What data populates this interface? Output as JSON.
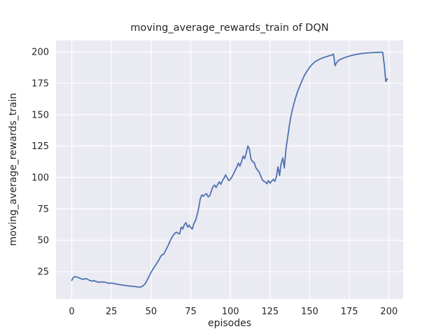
{
  "chart_data": {
    "type": "line",
    "title": "moving_average_rewards_train of DQN",
    "xlabel": "episodes",
    "ylabel": "moving_average_rewards_train",
    "x_ticks": [
      0,
      25,
      50,
      75,
      100,
      125,
      150,
      175,
      200
    ],
    "y_ticks": [
      25,
      50,
      75,
      100,
      125,
      150,
      175,
      200
    ],
    "xlim": [
      -9.95,
      208.95
    ],
    "ylim": [
      3.3,
      209.2
    ],
    "grid": true,
    "legend_position": "none",
    "style": {
      "figure_bg": "#ffffff",
      "axes_bg": "#eaeaf2",
      "grid_color": "#ffffff",
      "line_color": "#4c72b0",
      "text_color": "#262626"
    },
    "series": [
      {
        "name": "moving_average_rewards_train",
        "x_is_index": true,
        "values": [
          18.0,
          20.3,
          21.2,
          20.7,
          20.3,
          19.8,
          19.3,
          18.8,
          19.2,
          19.5,
          18.9,
          18.2,
          17.7,
          17.5,
          17.9,
          17.3,
          16.9,
          16.5,
          16.9,
          16.6,
          16.9,
          16.5,
          16.2,
          15.9,
          15.6,
          16.0,
          15.7,
          15.4,
          15.1,
          14.9,
          14.7,
          14.5,
          14.3,
          14.1,
          13.9,
          13.8,
          13.6,
          13.5,
          13.3,
          13.2,
          13.1,
          12.9,
          12.8,
          12.7,
          13.0,
          13.8,
          15.0,
          17.0,
          19.5,
          22.0,
          24.5,
          26.5,
          28.5,
          30.5,
          32.5,
          34.5,
          37.0,
          38.5,
          38.8,
          41.5,
          44.0,
          46.5,
          49.5,
          52.0,
          54.0,
          55.5,
          56.5,
          55.5,
          55.0,
          60.5,
          59.0,
          62.5,
          64.0,
          60.5,
          62.0,
          60.0,
          59.0,
          63.5,
          65.5,
          70.0,
          75.5,
          83.0,
          86.0,
          85.0,
          86.5,
          87.0,
          84.5,
          85.5,
          89.0,
          92.5,
          94.0,
          92.0,
          94.5,
          96.5,
          94.5,
          97.5,
          99.5,
          102.0,
          99.5,
          97.5,
          98.5,
          100.5,
          103.0,
          105.5,
          108.0,
          111.5,
          109.0,
          112.5,
          117.0,
          115.0,
          119.5,
          125.0,
          122.5,
          114.5,
          112.5,
          112.0,
          108.0,
          106.0,
          104.5,
          101.5,
          98.5,
          97.0,
          96.5,
          95.0,
          97.5,
          95.5,
          97.0,
          98.5,
          97.0,
          100.5,
          108.5,
          101.5,
          111.0,
          115.5,
          107.5,
          122.0,
          131.0,
          140.0,
          147.5,
          153.5,
          158.5,
          163.0,
          167.0,
          170.5,
          173.5,
          176.5,
          179.5,
          182.0,
          184.0,
          186.0,
          187.8,
          189.3,
          190.6,
          191.7,
          192.6,
          193.4,
          194.0,
          194.6,
          195.1,
          195.6,
          196.0,
          196.4,
          196.8,
          197.1,
          197.5,
          198.2,
          189.0,
          191.5,
          193.0,
          193.8,
          194.4,
          194.9,
          195.4,
          195.8,
          196.2,
          196.6,
          197.0,
          197.3,
          197.6,
          197.9,
          198.1,
          198.3,
          198.5,
          198.7,
          198.9,
          199.0,
          199.1,
          199.2,
          199.3,
          199.4,
          199.5,
          199.5,
          199.6,
          199.6,
          199.7,
          199.7,
          199.6,
          190.0,
          176.5,
          178.5
        ]
      }
    ]
  }
}
